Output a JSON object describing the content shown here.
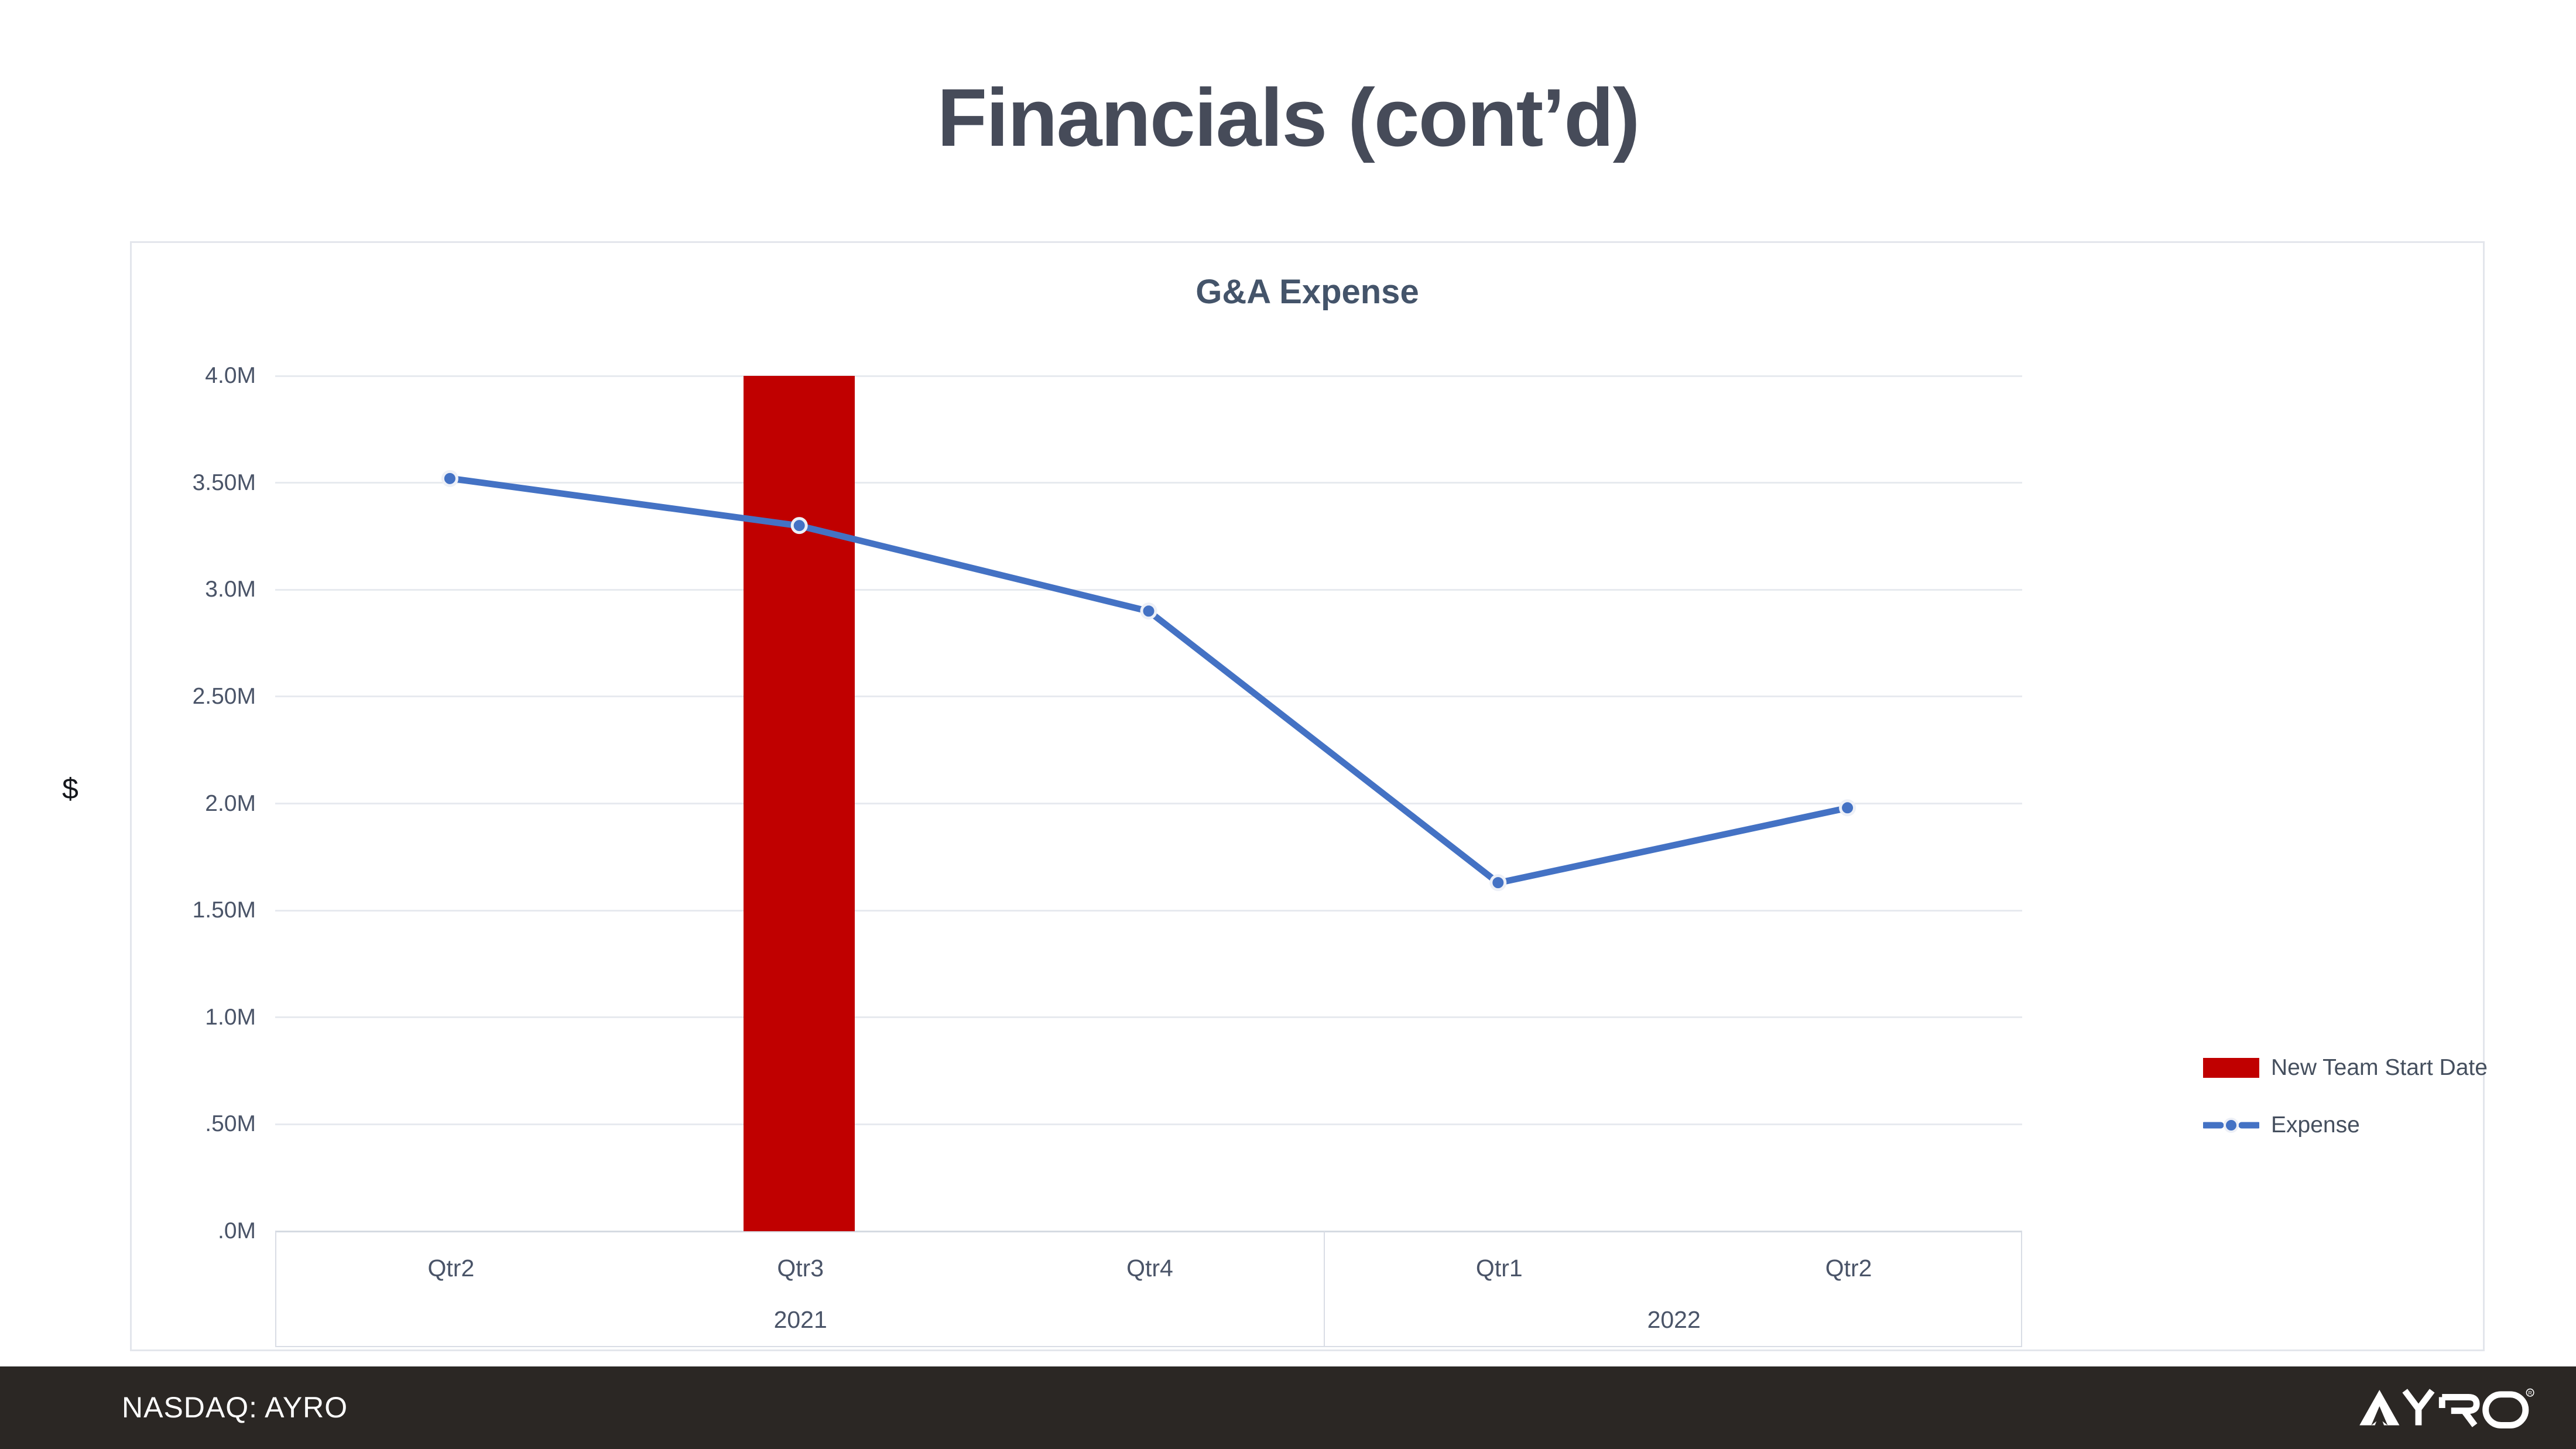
{
  "slide": {
    "title": "Financials (cont’d)"
  },
  "chart": {
    "title": "G&A Expense",
    "y_axis_title": "$",
    "y_ticks": [
      "4.0M",
      "3.50M",
      "3.0M",
      "2.50M",
      "2.0M",
      "1.50M",
      "1.0M",
      ".50M",
      ".0M"
    ],
    "x_quarters": [
      "Qtr2",
      "Qtr3",
      "Qtr4",
      "Qtr1",
      "Qtr2"
    ],
    "x_years": [
      "2021",
      "2022"
    ],
    "legend": [
      {
        "label": "New Team Start Date",
        "type": "bar",
        "color": "#c00000"
      },
      {
        "label": "Expense",
        "type": "line",
        "color": "#4472c4"
      }
    ]
  },
  "chart_data": {
    "type": "combo",
    "title": "G&A Expense",
    "ylabel": "$",
    "ylim": [
      0,
      4.0
    ],
    "y_unit": "millions USD",
    "grid": true,
    "legend_position": "right",
    "categories": [
      "Qtr2 2021",
      "Qtr3 2021",
      "Qtr4 2021",
      "Qtr1 2022",
      "Qtr2 2022"
    ],
    "year_groups": [
      {
        "year": "2021",
        "quarters": [
          "Qtr2",
          "Qtr3",
          "Qtr4"
        ]
      },
      {
        "year": "2022",
        "quarters": [
          "Qtr1",
          "Qtr2"
        ]
      }
    ],
    "series": [
      {
        "name": "New Team Start Date",
        "type": "bar",
        "color": "#c00000",
        "values": [
          null,
          4.0,
          null,
          null,
          null
        ]
      },
      {
        "name": "Expense",
        "type": "line",
        "color": "#4472c4",
        "values": [
          3.52,
          3.3,
          2.9,
          1.63,
          1.98
        ]
      }
    ]
  },
  "footer": {
    "ticker": "NASDAQ: AYRO",
    "logo_text": "AYRO",
    "logo_registered": "®"
  }
}
